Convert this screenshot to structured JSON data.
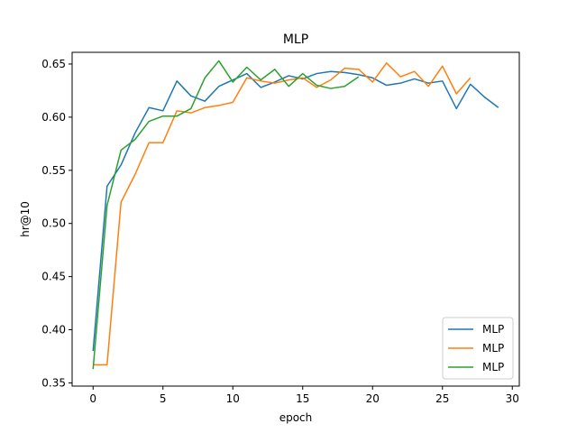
{
  "chart_data": {
    "type": "line",
    "title": "MLP",
    "xlabel": "epoch",
    "ylabel": "hr@10",
    "xlim": [
      -1.5,
      30.5
    ],
    "ylim": [
      0.347,
      0.661
    ],
    "xticks": [
      0,
      5,
      10,
      15,
      20,
      25,
      30
    ],
    "xtick_labels": [
      "0",
      "5",
      "10",
      "15",
      "20",
      "25",
      "30"
    ],
    "yticks": [
      0.35,
      0.4,
      0.45,
      0.5,
      0.55,
      0.6,
      0.65
    ],
    "ytick_labels": [
      "0.35",
      "0.40",
      "0.45",
      "0.50",
      "0.55",
      "0.60",
      "0.65"
    ],
    "grid": false,
    "legend_position": "lower-right",
    "series": [
      {
        "name": "MLP",
        "color": "#1f77b4",
        "x": [
          0,
          1,
          2,
          3,
          4,
          5,
          6,
          7,
          8,
          9,
          10,
          11,
          12,
          13,
          14,
          15,
          16,
          17,
          18,
          19,
          20,
          21,
          22,
          23,
          24,
          25,
          26,
          27,
          28,
          29
        ],
        "y": [
          0.38,
          0.535,
          0.555,
          0.585,
          0.609,
          0.606,
          0.634,
          0.62,
          0.615,
          0.629,
          0.635,
          0.641,
          0.628,
          0.633,
          0.639,
          0.636,
          0.641,
          0.643,
          0.642,
          0.64,
          0.637,
          0.63,
          0.632,
          0.636,
          0.632,
          0.634,
          0.608,
          0.631,
          0.619,
          0.609
        ]
      },
      {
        "name": "MLP",
        "color": "#ff7f0e",
        "x": [
          0,
          1,
          2,
          3,
          4,
          5,
          6,
          7,
          8,
          9,
          10,
          11,
          12,
          13,
          14,
          15,
          16,
          17,
          18,
          19,
          20,
          21,
          22,
          23,
          24,
          25,
          26,
          27
        ],
        "y": [
          0.367,
          0.367,
          0.52,
          0.546,
          0.576,
          0.576,
          0.606,
          0.604,
          0.609,
          0.611,
          0.614,
          0.637,
          0.634,
          0.632,
          0.635,
          0.637,
          0.628,
          0.635,
          0.646,
          0.645,
          0.633,
          0.651,
          0.638,
          0.643,
          0.629,
          0.648,
          0.622,
          0.637
        ]
      },
      {
        "name": "MLP",
        "color": "#2ca02c",
        "x": [
          0,
          1,
          2,
          3,
          4,
          5,
          6,
          7,
          8,
          9,
          10,
          11,
          12,
          13,
          14,
          15,
          16,
          17,
          18,
          19
        ],
        "y": [
          0.363,
          0.517,
          0.569,
          0.579,
          0.596,
          0.601,
          0.601,
          0.608,
          0.637,
          0.653,
          0.633,
          0.647,
          0.635,
          0.645,
          0.629,
          0.641,
          0.63,
          0.627,
          0.629,
          0.638
        ]
      }
    ]
  }
}
